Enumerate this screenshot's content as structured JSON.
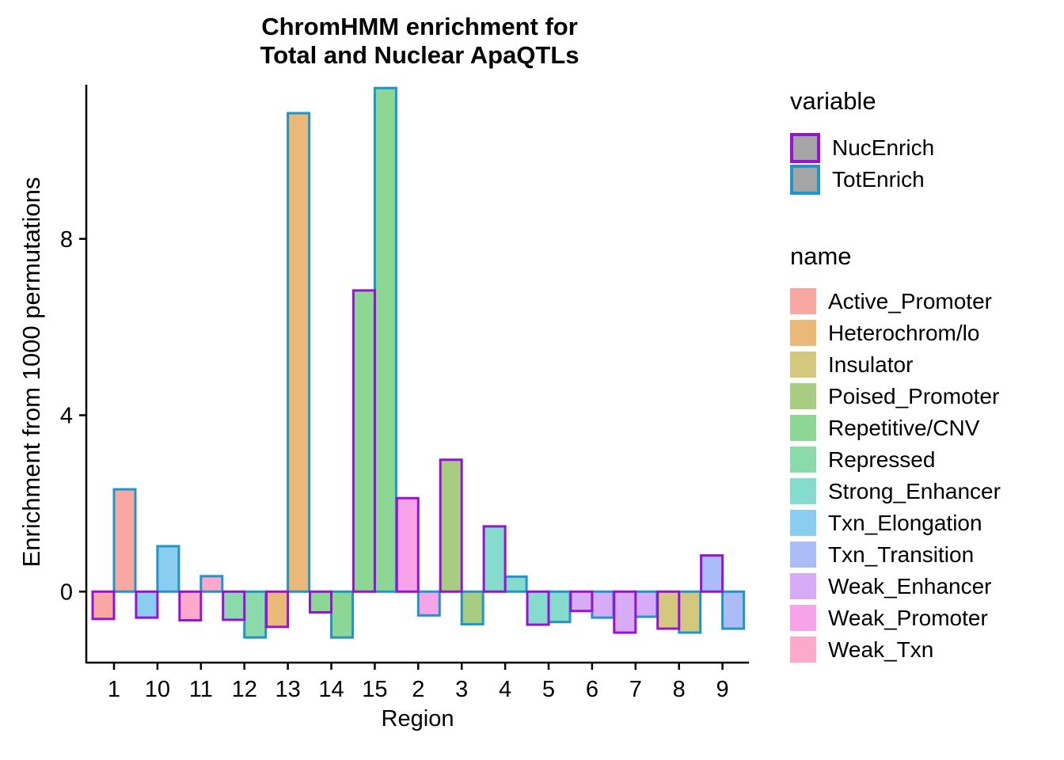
{
  "chart": {
    "title_line1": "ChromHMM enrichment for",
    "title_line2": "Total and Nuclear ApaQTLs",
    "xlabel": "Region",
    "ylabel": "Enrichment from 1000 permutations"
  },
  "legend_variable": {
    "title": "variable",
    "swatch_fill": "#A5A5A5",
    "items": [
      {
        "label": "NucEnrich",
        "border": "#9712D4"
      },
      {
        "label": "TotEnrich",
        "border": "#2095C8"
      }
    ]
  },
  "legend_name": {
    "title": "name",
    "items": [
      {
        "label": "Active_Promoter",
        "color": "#F7A8A3"
      },
      {
        "label": "Heterochrom/lo",
        "color": "#EAB878"
      },
      {
        "label": "Insulator",
        "color": "#D4C77E"
      },
      {
        "label": "Poised_Promoter",
        "color": "#A9CD80"
      },
      {
        "label": "Repetitive/CNV",
        "color": "#8BD793"
      },
      {
        "label": "Repressed",
        "color": "#8BDAAB"
      },
      {
        "label": "Strong_Enhancer",
        "color": "#86DCCC"
      },
      {
        "label": "Txn_Elongation",
        "color": "#8ACDF1"
      },
      {
        "label": "Txn_Transition",
        "color": "#AABDF7"
      },
      {
        "label": "Weak_Enhancer",
        "color": "#D8ABF6"
      },
      {
        "label": "Weak_Promoter",
        "color": "#F6A3EA"
      },
      {
        "label": "Weak_Txn",
        "color": "#FCA9CB"
      }
    ]
  },
  "chart_data": {
    "type": "bar",
    "title": "ChromHMM enrichment for Total and Nuclear ApaQTLs",
    "xlabel": "Region",
    "ylabel": "Enrichment from 1000 permutations",
    "categories": [
      "1",
      "10",
      "11",
      "12",
      "13",
      "14",
      "15",
      "2",
      "3",
      "4",
      "5",
      "6",
      "7",
      "8",
      "9"
    ],
    "category_states": [
      "Active_Promoter",
      "Txn_Elongation",
      "Weak_Txn",
      "Repressed",
      "Heterochrom/lo",
      "Repetitive/CNV",
      "Repetitive/CNV",
      "Weak_Promoter",
      "Poised_Promoter",
      "Strong_Enhancer",
      "Strong_Enhancer",
      "Weak_Enhancer",
      "Weak_Enhancer",
      "Insulator",
      "Txn_Transition"
    ],
    "series": [
      {
        "name": "NucEnrich",
        "values": [
          -0.62,
          -0.59,
          -0.65,
          -0.64,
          -0.8,
          -0.47,
          6.83,
          2.12,
          2.99,
          1.48,
          -0.75,
          -0.44,
          -0.93,
          -0.84,
          0.82
        ]
      },
      {
        "name": "TotEnrich",
        "values": [
          2.32,
          1.03,
          0.35,
          -1.04,
          10.85,
          -1.04,
          11.42,
          -0.54,
          -0.74,
          0.34,
          -0.69,
          -0.59,
          -0.57,
          -0.93,
          -0.84
        ]
      }
    ],
    "yticks": [
      0,
      4,
      8
    ],
    "ylim": [
      -1.35,
      11.5
    ],
    "grid": false,
    "legend_position": "right",
    "bar_style": "dodged, fill by chromatin state, outline by variable"
  }
}
